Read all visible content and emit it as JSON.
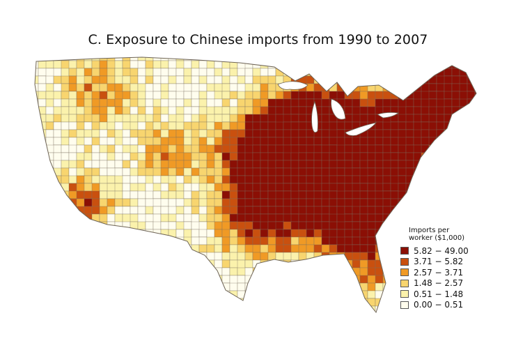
{
  "title": "C. Exposure to Chinese imports from 1990 to 2007",
  "legend": {
    "title_line1": "Imports per",
    "title_line2": "worker ($1,000)",
    "items": [
      {
        "label": "5.82 − 49.00",
        "color": "#8b0f05"
      },
      {
        "label": "3.71 − 5.82",
        "color": "#c9500f"
      },
      {
        "label": "2.57 − 3.71",
        "color": "#f09a25"
      },
      {
        "label": "1.48 − 2.57",
        "color": "#f8d56f"
      },
      {
        "label": "0.51 − 1.48",
        "color": "#fbf2ac"
      },
      {
        "label": "0.00 − 0.51",
        "color": "#fffdee"
      }
    ]
  },
  "map": {
    "subject": "Contiguous United States commuting zones",
    "boundary_color": "#7a6f60"
  }
}
